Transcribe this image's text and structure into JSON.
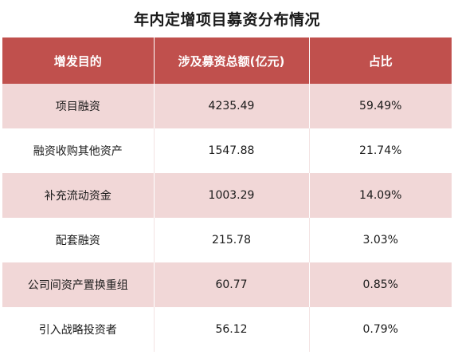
{
  "chart_data": {
    "type": "table",
    "title": "年内定增项目募资分布情况",
    "columns": [
      "增发目的",
      "涉及募资总额(亿元)",
      "占比"
    ],
    "rows": [
      {
        "purpose": "项目融资",
        "amount": "4235.49",
        "share": "59.49%"
      },
      {
        "purpose": "融资收购其他资产",
        "amount": "1547.88",
        "share": "21.74%"
      },
      {
        "purpose": "补充流动资金",
        "amount": "1003.29",
        "share": "14.09%"
      },
      {
        "purpose": "配套融资",
        "amount": "215.78",
        "share": "3.03%"
      },
      {
        "purpose": "公司间资产置换重组",
        "amount": "60.77",
        "share": "0.85%"
      },
      {
        "purpose": "引入战略投资者",
        "amount": "56.12",
        "share": "0.79%"
      }
    ]
  },
  "colors": {
    "header_bg": "#c0504d",
    "header_text": "#ffffff",
    "band_bg": "#f1d7d7",
    "plain_bg": "#ffffff"
  }
}
